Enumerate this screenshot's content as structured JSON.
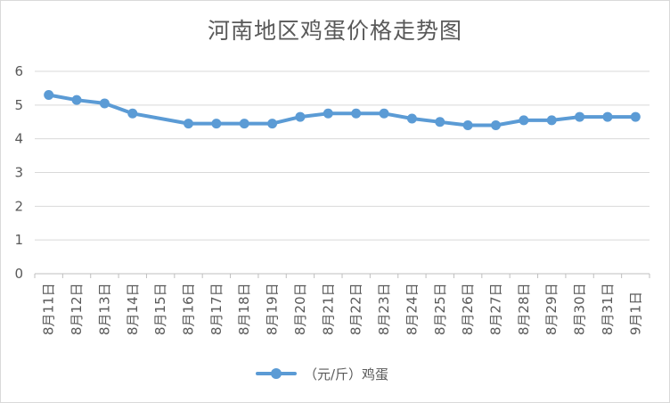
{
  "chart_data": {
    "type": "line",
    "title": "河南地区鸡蛋价格走势图",
    "categories": [
      "8月11日",
      "8月12日",
      "8月13日",
      "8月14日",
      "8月15日",
      "8月16日",
      "8月17日",
      "8月18日",
      "8月19日",
      "8月20日",
      "8月21日",
      "8月22日",
      "8月23日",
      "8月24日",
      "8月25日",
      "8月26日",
      "8月27日",
      "8月28日",
      "8月29日",
      "8月30日",
      "8月31日",
      "9月1日"
    ],
    "series": [
      {
        "name": "（元/斤）鸡蛋",
        "color": "#5b9bd5",
        "values": [
          5.3,
          5.15,
          5.05,
          4.75,
          null,
          4.45,
          4.45,
          4.45,
          4.45,
          4.65,
          4.75,
          4.75,
          4.75,
          4.6,
          4.5,
          4.4,
          4.4,
          4.55,
          4.55,
          4.65,
          4.65,
          4.65
        ]
      }
    ],
    "ylim": [
      0,
      6
    ],
    "yticks": [
      "0",
      "1",
      "2",
      "3",
      "4",
      "5",
      "6"
    ],
    "grid": true,
    "legend_position": "bottom"
  }
}
